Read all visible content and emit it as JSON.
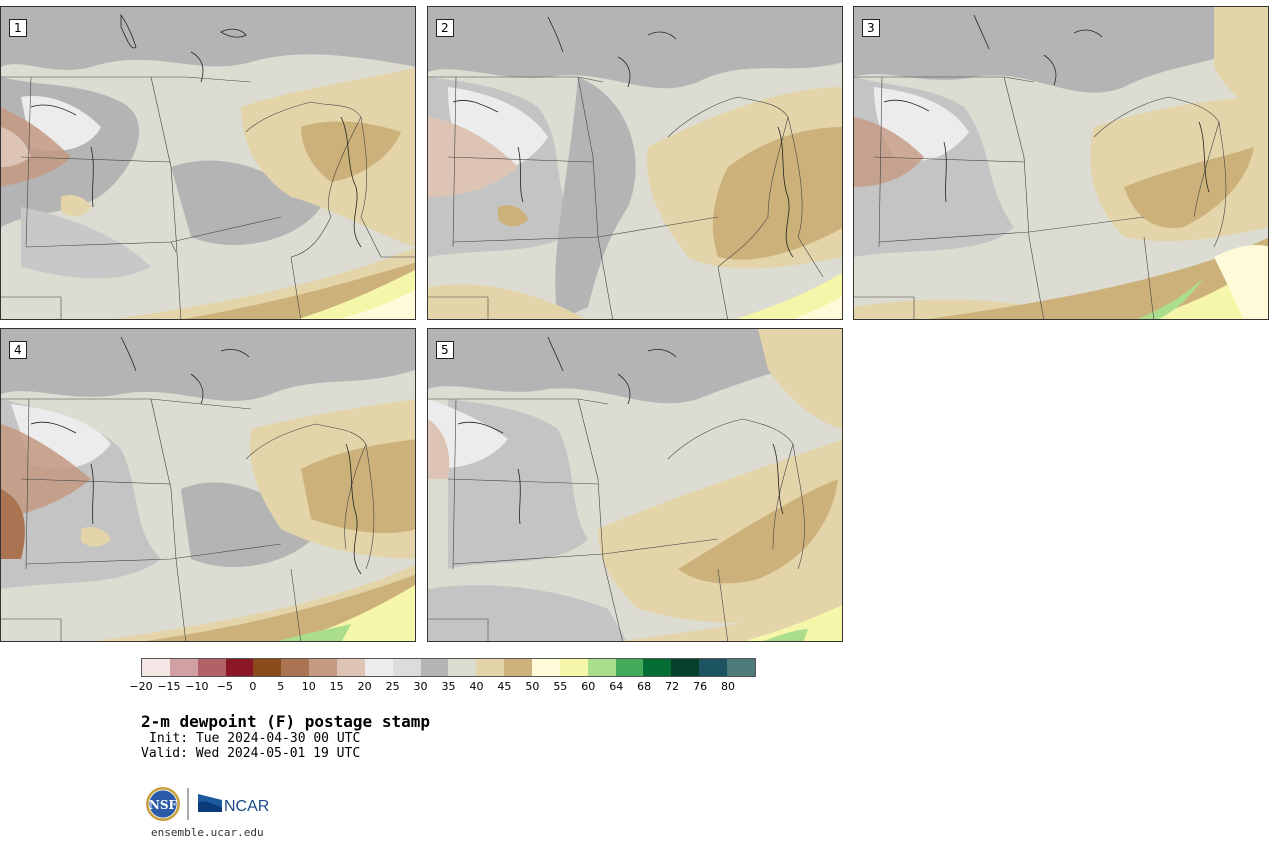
{
  "panels": [
    {
      "label": "1"
    },
    {
      "label": "2"
    },
    {
      "label": "3"
    },
    {
      "label": "4"
    },
    {
      "label": "5"
    }
  ],
  "colorbar": {
    "colors": [
      "#f4e6e4",
      "#d2a0a2",
      "#b06268",
      "#8a1626",
      "#8a4a1c",
      "#aa7452",
      "#c49a82",
      "#ddc4b4",
      "#ececec",
      "#dcdcdc",
      "#b4b4b4",
      "#dcdcd0",
      "#e4d4aa",
      "#ccb27a",
      "#fffbd8",
      "#f6f6aa",
      "#aade8c",
      "#46aa5c",
      "#046e34",
      "#04402a",
      "#1c5462",
      "#4e7a7a"
    ],
    "ticks": [
      "−20",
      "−15",
      "−10",
      "−5",
      "0",
      "5",
      "10",
      "15",
      "20",
      "25",
      "30",
      "35",
      "40",
      "45",
      "50",
      "55",
      "60",
      "64",
      "68",
      "72",
      "76",
      "80"
    ]
  },
  "title": "2-m dewpoint (F) postage stamp",
  "init": "Init: Tue 2024-04-30 00 UTC",
  "valid": "Valid: Wed 2024-05-01 19 UTC",
  "footer_url": "ensemble.ucar.edu",
  "logos": {
    "nsf": "NSF",
    "ncar": "NCAR"
  }
}
